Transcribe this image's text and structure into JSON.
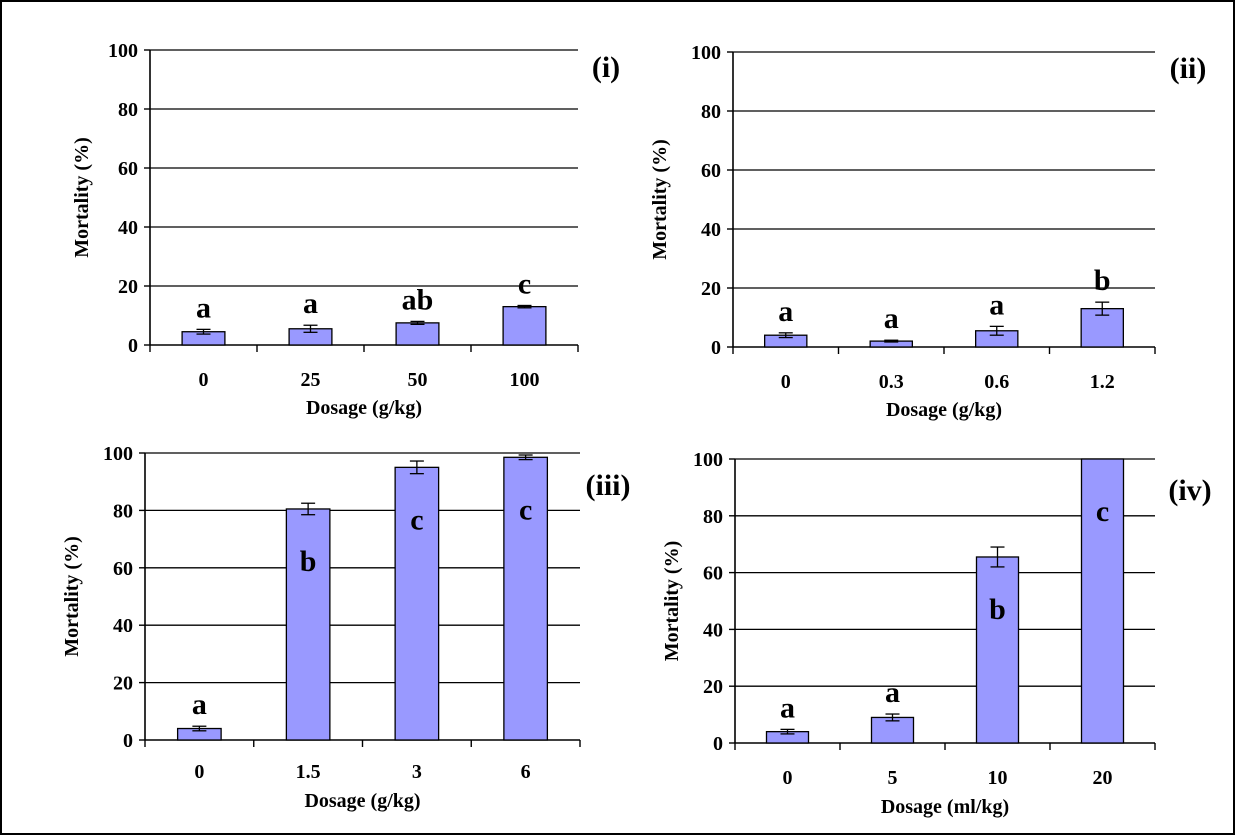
{
  "colors": {
    "bar_fill": "#9999ff",
    "bar_stroke": "#000000",
    "grid": "#000000",
    "text": "#000000",
    "background": "#ffffff"
  },
  "chart_data": [
    {
      "type": "bar",
      "panel_label": "(i)",
      "xlabel": "Dosage (g/kg)",
      "ylabel": "Mortality (%)",
      "categories": [
        "0",
        "25",
        "50",
        "100"
      ],
      "values": [
        4.5,
        5.5,
        7.5,
        13
      ],
      "errors": [
        0.8,
        1.2,
        0.5,
        0.4
      ],
      "letters": [
        "a",
        "a",
        "ab",
        "c"
      ],
      "letter_position": "above",
      "ylim": [
        0,
        100
      ],
      "yticks": [
        0,
        20,
        40,
        60,
        80,
        100
      ],
      "grid": true
    },
    {
      "type": "bar",
      "panel_label": "(ii)",
      "xlabel": "Dosage (g/kg)",
      "ylabel": "Mortality (%)",
      "categories": [
        "0",
        "0.3",
        "0.6",
        "1.2"
      ],
      "values": [
        4,
        2,
        5.5,
        13
      ],
      "errors": [
        0.8,
        0.3,
        1.5,
        2.2
      ],
      "letters": [
        "a",
        "a",
        "a",
        "b"
      ],
      "letter_position": "above",
      "ylim": [
        0,
        100
      ],
      "yticks": [
        0,
        20,
        40,
        60,
        80,
        100
      ],
      "grid": true
    },
    {
      "type": "bar",
      "panel_label": "(iii)",
      "xlabel": "Dosage (g/kg)",
      "ylabel": "Mortality (%)",
      "categories": [
        "0",
        "1.5",
        "3",
        "6"
      ],
      "values": [
        4,
        80.5,
        95,
        98.5
      ],
      "errors": [
        0.8,
        2,
        2.2,
        0.8
      ],
      "letters": [
        "a",
        "b",
        "c",
        "c"
      ],
      "letter_position": [
        "above",
        "inside",
        "inside",
        "inside"
      ],
      "ylim": [
        0,
        100
      ],
      "yticks": [
        0,
        20,
        40,
        60,
        80,
        100
      ],
      "grid": true
    },
    {
      "type": "bar",
      "panel_label": "(iv)",
      "xlabel": "Dosage (ml/kg)",
      "ylabel": "Mortality (%)",
      "categories": [
        "0",
        "5",
        "10",
        "20"
      ],
      "values": [
        4,
        9,
        65.5,
        100
      ],
      "errors": [
        0.8,
        1.2,
        3.5,
        0
      ],
      "letters": [
        "a",
        "a",
        "b",
        "c"
      ],
      "letter_position": [
        "above",
        "above",
        "inside",
        "inside"
      ],
      "ylim": [
        0,
        100
      ],
      "yticks": [
        0,
        20,
        40,
        60,
        80,
        100
      ],
      "grid": true
    }
  ]
}
